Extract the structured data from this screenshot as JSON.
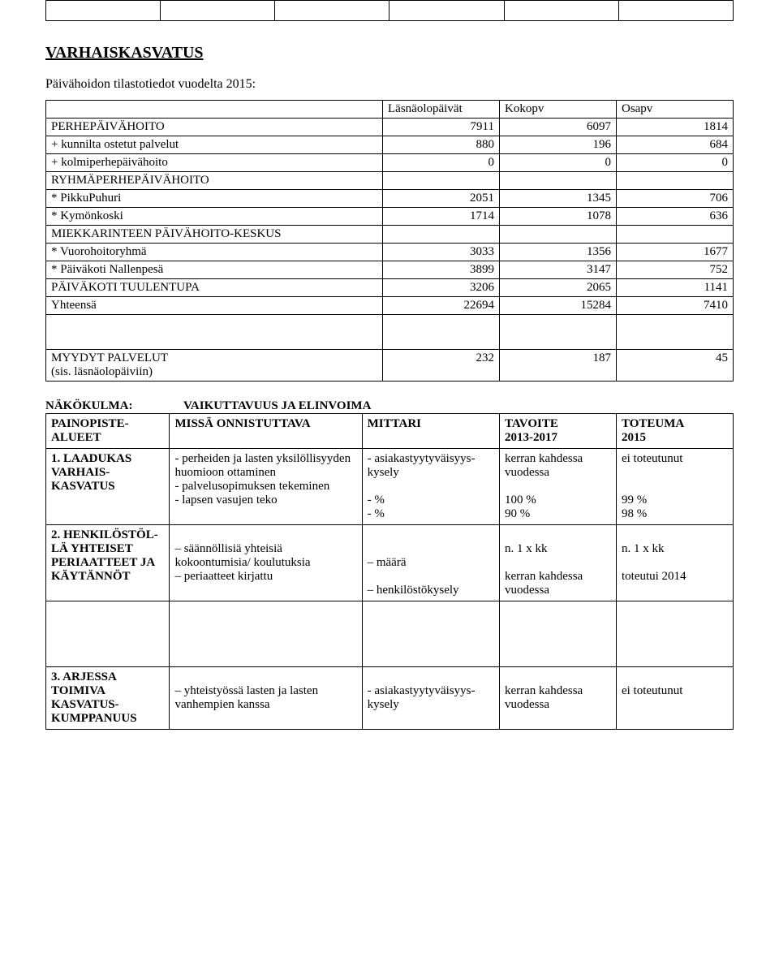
{
  "top_stub_cols": 6,
  "heading": "VARHAISKASVATUS",
  "subheading": "Päivähoidon tilastotiedot vuodelta 2015:",
  "table1": {
    "col_widths": [
      "49%",
      "17%",
      "17%",
      "17%"
    ],
    "headers": [
      "",
      "Läsnäolopäivät",
      "Kokopv",
      "Osapv"
    ],
    "rows": [
      {
        "label": "PERHEPÄIVÄHOITO",
        "c1": "7911",
        "c2": "6097",
        "c3": "1814"
      },
      {
        "label": "+ kunnilta ostetut palvelut",
        "c1": "880",
        "c2": "196",
        "c3": "684"
      },
      {
        "label": "+ kolmiperhepäivähoito",
        "c1": "0",
        "c2": "0",
        "c3": "0"
      },
      {
        "label": "RYHMÄPERHEPÄIVÄHOITO",
        "c1": "",
        "c2": "",
        "c3": ""
      },
      {
        "label": "* PikkuPuhuri",
        "c1": "2051",
        "c2": "1345",
        "c3": "706"
      },
      {
        "label": "* Kymönkoski",
        "c1": "1714",
        "c2": "1078",
        "c3": "636"
      },
      {
        "label": "MIEKKARINTEEN PÄIVÄHOITO-KESKUS",
        "c1": "",
        "c2": "",
        "c3": "",
        "multiline": true
      },
      {
        "label": "* Vuorohoitoryhmä",
        "c1": "3033",
        "c2": "1356",
        "c3": "1677"
      },
      {
        "label": "* Päiväkoti Nallenpesä",
        "c1": "3899",
        "c2": "3147",
        "c3": "752"
      },
      {
        "label": "PÄIVÄKOTI TUULENTUPA",
        "c1": "3206",
        "c2": "2065",
        "c3": "1141"
      },
      {
        "label": "Yhteensä",
        "c1": "22694",
        "c2": "15284",
        "c3": "7410"
      },
      {
        "label": "",
        "c1": "",
        "c2": "",
        "c3": "",
        "spacer": true
      },
      {
        "label": "MYYDYT PALVELUT\n(sis. läsnäolopäiviin)",
        "c1": "232",
        "c2": "187",
        "c3": "45",
        "multiline": true
      }
    ]
  },
  "nk": {
    "label": "NÄKÖKULMA:",
    "value": "VAIKUTTAVUUS JA ELINVOIMA"
  },
  "table2": {
    "col_widths": [
      "18%",
      "28%",
      "20%",
      "17%",
      "17%"
    ],
    "headers": [
      "PAINOPISTE-ALUEET",
      "MISSÄ ONNISTUTTAVA",
      "MITTARI",
      "TAVOITE\n2013-2017",
      "TOTEUMA\n2015"
    ],
    "rows": [
      {
        "c0": "1. LAADUKAS VARHAIS-KASVATUS",
        "c0_bold": true,
        "c1": "- perheiden ja lasten yksilöllisyyden huomioon ottaminen\n- palvelusopimuksen tekeminen\n- lapsen vasujen teko",
        "c2": "- asiakastyytyväisyys-kysely\n\n- %\n- %",
        "c3": "kerran kahdessa vuodessa\n\n100 %\n90 %",
        "c4": "ei toteutunut\n\n\n99 %\n98 %"
      },
      {
        "c0": "2. HENKILÖSTÖL-LÄ YHTEISET PERIAATTEET JA KÄYTÄNNÖT",
        "c0_bold": true,
        "c1": "\n– säännöllisiä yhteisiä kokoontumisia/ koulutuksia\n– periaatteet kirjattu",
        "c2": "\n\n– määrä\n\n– henkilöstökysely",
        "c3": "\nn. 1 x kk\n\nkerran kahdessa vuodessa",
        "c4": "\nn. 1 x kk\n\ntoteutui 2014"
      },
      {
        "spacer": true
      },
      {
        "c0": "3. ARJESSA TOIMIVA KASVATUS-KUMPPANUUS",
        "c0_bold": true,
        "c1": "\n– yhteistyössä lasten ja lasten vanhempien kanssa",
        "c2": "\n- asiakastyytyväisyys-kysely",
        "c3": "\nkerran kahdessa vuodessa",
        "c4": "\nei toteutunut"
      }
    ]
  }
}
